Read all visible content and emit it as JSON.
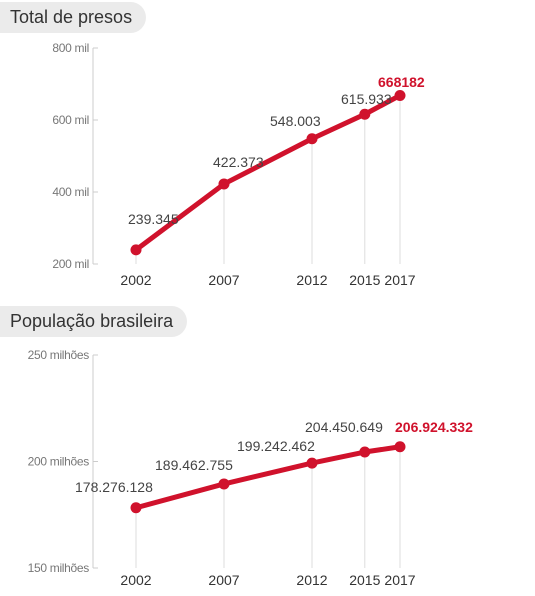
{
  "chart_data": [
    {
      "type": "line",
      "title": "Total de presos",
      "x": [
        2002,
        2007,
        2012,
        2015,
        2017
      ],
      "categories": [
        "2002",
        "2007",
        "2012",
        "2015",
        "2017"
      ],
      "series": [
        {
          "values": [
            239345,
            422373,
            548003,
            615933,
            668182
          ],
          "labels": [
            "239.345",
            "422.373",
            "548.003",
            "615.933",
            "668182"
          ]
        }
      ],
      "yticks": [
        200000,
        400000,
        600000,
        800000
      ],
      "ytick_labels": [
        "200 mil",
        "400 mil",
        "600 mil",
        "800 mil"
      ],
      "ylim": [
        200000,
        800000
      ],
      "highlight_index": 4,
      "colors": {
        "line": "#d0122c",
        "highlight_label": "#d0122c"
      }
    },
    {
      "type": "line",
      "title": "População brasileira",
      "x": [
        2002,
        2007,
        2012,
        2015,
        2017
      ],
      "categories": [
        "2002",
        "2007",
        "2012",
        "2015",
        "2017"
      ],
      "series": [
        {
          "values": [
            178276128,
            189462755,
            199242462,
            204450649,
            206924332
          ],
          "labels": [
            "178.276.128",
            "189.462.755",
            "199.242.462",
            "204.450.649",
            "206.924.332"
          ]
        }
      ],
      "yticks": [
        150000000,
        200000000,
        250000000
      ],
      "ytick_labels": [
        "150 milhões",
        "200 milhões",
        "250 milhões"
      ],
      "ylim": [
        150000000,
        250000000
      ],
      "highlight_index": 4,
      "colors": {
        "line": "#d0122c",
        "highlight_label": "#d0122c"
      }
    }
  ]
}
